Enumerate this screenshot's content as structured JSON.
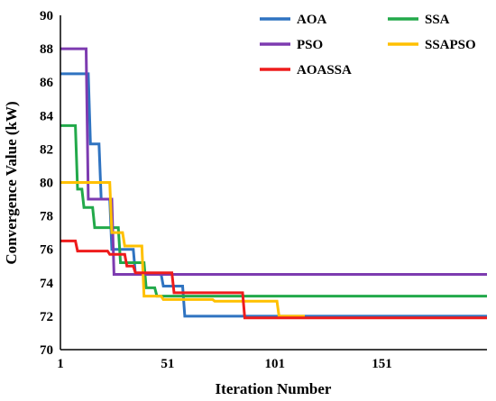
{
  "chart_data": {
    "type": "line",
    "title": "",
    "xlabel": "Iteration Number",
    "ylabel": "Convergence Value (kW)",
    "xlim": [
      1,
      200
    ],
    "ylim": [
      70,
      90
    ],
    "xticks": [
      1,
      51,
      101,
      151
    ],
    "yticks": [
      70,
      72,
      74,
      76,
      78,
      80,
      82,
      84,
      86,
      88,
      90
    ],
    "grid": false,
    "legend_position": "top-right",
    "series": [
      {
        "name": "AOA",
        "color": "#2f73c1",
        "step": true,
        "points": [
          [
            1,
            86.5
          ],
          [
            14,
            86.5
          ],
          [
            15,
            82.3
          ],
          [
            19,
            82.3
          ],
          [
            20,
            79.0
          ],
          [
            24,
            79.0
          ],
          [
            25,
            76.0
          ],
          [
            35,
            76.0
          ],
          [
            36,
            74.5
          ],
          [
            48,
            74.5
          ],
          [
            49,
            73.8
          ],
          [
            58,
            73.8
          ],
          [
            59,
            72.0
          ],
          [
            200,
            72.0
          ]
        ]
      },
      {
        "name": "SSA",
        "color": "#22a94a",
        "step": true,
        "points": [
          [
            1,
            83.4
          ],
          [
            8,
            83.4
          ],
          [
            9,
            79.6
          ],
          [
            11,
            79.6
          ],
          [
            12,
            78.5
          ],
          [
            16,
            78.5
          ],
          [
            17,
            77.3
          ],
          [
            28,
            77.3
          ],
          [
            29,
            75.2
          ],
          [
            40,
            75.2
          ],
          [
            41,
            73.7
          ],
          [
            45,
            73.7
          ],
          [
            46,
            73.2
          ],
          [
            200,
            73.2
          ]
        ]
      },
      {
        "name": "PSO",
        "color": "#7d3bb0",
        "step": true,
        "points": [
          [
            1,
            88.0
          ],
          [
            13,
            88.0
          ],
          [
            14,
            79.0
          ],
          [
            25,
            79.0
          ],
          [
            26,
            74.5
          ],
          [
            200,
            74.5
          ]
        ]
      },
      {
        "name": "SSAPSO",
        "color": "#ffc000",
        "step": true,
        "points": [
          [
            1,
            80.0
          ],
          [
            24,
            80.0
          ],
          [
            25,
            77.0
          ],
          [
            30,
            77.0
          ],
          [
            31,
            76.2
          ],
          [
            39,
            76.2
          ],
          [
            40,
            73.2
          ],
          [
            48,
            73.2
          ],
          [
            49,
            73.0
          ],
          [
            72,
            73.0
          ],
          [
            73,
            72.9
          ],
          [
            102,
            72.9
          ],
          [
            103,
            72.0
          ],
          [
            115,
            72.0
          ]
        ]
      },
      {
        "name": "AOASSA",
        "color": "#ee1c1c",
        "step": true,
        "points": [
          [
            1,
            76.5
          ],
          [
            8,
            76.5
          ],
          [
            9,
            75.9
          ],
          [
            23,
            75.9
          ],
          [
            24,
            75.7
          ],
          [
            31,
            75.7
          ],
          [
            32,
            75.0
          ],
          [
            35,
            75.0
          ],
          [
            36,
            74.6
          ],
          [
            53,
            74.6
          ],
          [
            54,
            73.4
          ],
          [
            86,
            73.4
          ],
          [
            87,
            71.9
          ],
          [
            200,
            71.9
          ]
        ]
      }
    ]
  }
}
